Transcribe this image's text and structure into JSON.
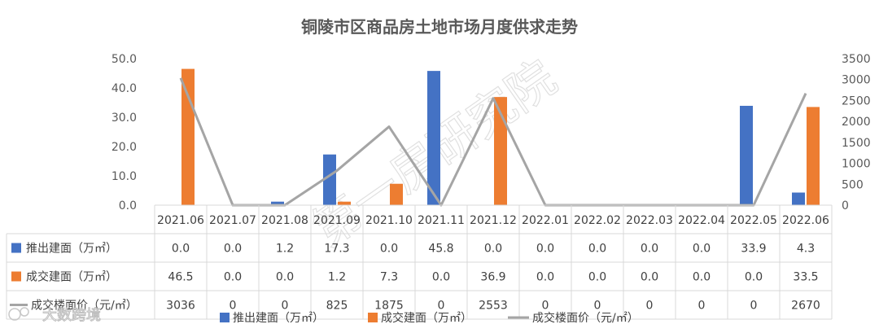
{
  "chart_data": {
    "type": "bar",
    "title": "铜陵市区商品房土地市场月度供求走势",
    "categories": [
      "2021.06",
      "2021.07",
      "2021.08",
      "2021.09",
      "2021.10",
      "2021.11",
      "2021.12",
      "2022.01",
      "2022.02",
      "2022.03",
      "2022.04",
      "2022.05",
      "2022.06"
    ],
    "series": [
      {
        "name": "推出建面（万㎡）",
        "kind": "bar",
        "axis": "left",
        "color": "#4472C4",
        "values": [
          0.0,
          0.0,
          1.2,
          17.3,
          0.0,
          45.8,
          0.0,
          0.0,
          0.0,
          0.0,
          0.0,
          33.9,
          4.3
        ],
        "labels": [
          "0.0",
          "0.0",
          "1.2",
          "17.3",
          "0.0",
          "45.8",
          "0.0",
          "0.0",
          "0.0",
          "0.0",
          "0.0",
          "33.9",
          "4.3"
        ]
      },
      {
        "name": "成交建面（万㎡）",
        "kind": "bar",
        "axis": "left",
        "color": "#ED7D31",
        "values": [
          46.5,
          0.0,
          0.0,
          1.2,
          7.3,
          0.0,
          36.9,
          0.0,
          0.0,
          0.0,
          0.0,
          0.0,
          33.5
        ],
        "labels": [
          "46.5",
          "0.0",
          "0.0",
          "1.2",
          "7.3",
          "0.0",
          "36.9",
          "0.0",
          "0.0",
          "0.0",
          "0.0",
          "0.0",
          "33.5"
        ]
      },
      {
        "name": "成交楼面价（元/㎡）",
        "kind": "line",
        "axis": "right",
        "color": "#A5A5A5",
        "values": [
          3036,
          0,
          0,
          825,
          1875,
          0,
          2553,
          0,
          0,
          0,
          0,
          0,
          2670
        ],
        "labels": [
          "3036",
          "0",
          "0",
          "825",
          "1875",
          "0",
          "2553",
          "0",
          "0",
          "0",
          "0",
          "0",
          "2670"
        ]
      }
    ],
    "y_left": {
      "ylim": [
        0,
        50
      ],
      "ticks": [
        "0.0",
        "10.0",
        "20.0",
        "30.0",
        "40.0",
        "50.0"
      ]
    },
    "y_right": {
      "ylim": [
        0,
        3500
      ],
      "ticks": [
        "0",
        "500",
        "1000",
        "1500",
        "2000",
        "2500",
        "3000",
        "3500"
      ]
    },
    "grid": false,
    "legend_placement": "bottom",
    "data_table": true
  },
  "watermark": "第一房研究院",
  "logo_text": "大数跨境"
}
